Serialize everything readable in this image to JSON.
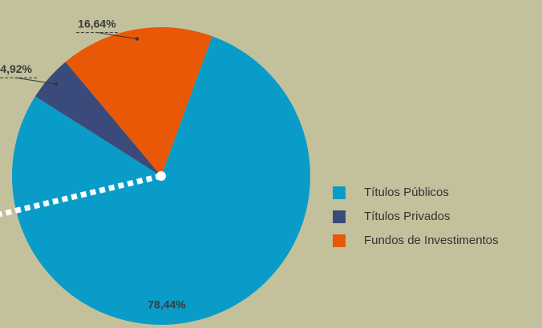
{
  "chart_data": {
    "type": "pie",
    "categories": [
      "Títulos Públicos",
      "Títulos Privados",
      "Fundos de Investimentos"
    ],
    "values": [
      78.44,
      4.92,
      16.64
    ],
    "value_labels": [
      "78,44%",
      "4,92%",
      "16,64%"
    ],
    "colors": [
      "#0a9cc8",
      "#3a4b7b",
      "#e85807"
    ],
    "legend": "right"
  }
}
